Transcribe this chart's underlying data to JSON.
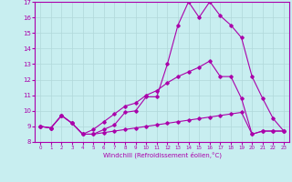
{
  "xlabel": "Windchill (Refroidissement éolien,°C)",
  "background_color": "#c8eef0",
  "grid_color": "#b0d8da",
  "line_color": "#aa00aa",
  "xlim": [
    -0.5,
    23.5
  ],
  "ylim": [
    8,
    17
  ],
  "xticks": [
    0,
    1,
    2,
    3,
    4,
    5,
    6,
    7,
    8,
    9,
    10,
    11,
    12,
    13,
    14,
    15,
    16,
    17,
    18,
    19,
    20,
    21,
    22,
    23
  ],
  "yticks": [
    8,
    9,
    10,
    11,
    12,
    13,
    14,
    15,
    16,
    17
  ],
  "series": [
    [
      9.0,
      8.9,
      9.7,
      9.2,
      8.5,
      8.5,
      8.8,
      9.1,
      9.9,
      10.0,
      10.9,
      10.9,
      13.0,
      15.5,
      17.0,
      16.0,
      17.0,
      16.1,
      15.5,
      14.7,
      12.2,
      10.8,
      9.5,
      8.7
    ],
    [
      9.0,
      8.9,
      9.7,
      9.2,
      8.5,
      8.8,
      9.3,
      9.8,
      10.3,
      10.5,
      11.0,
      11.3,
      11.8,
      12.2,
      12.5,
      12.8,
      13.2,
      12.2,
      12.2,
      10.8,
      8.5,
      8.7,
      8.7,
      8.7
    ],
    [
      9.0,
      8.9,
      9.7,
      9.2,
      8.5,
      8.5,
      8.6,
      8.7,
      8.8,
      8.9,
      9.0,
      9.1,
      9.2,
      9.3,
      9.4,
      9.5,
      9.6,
      9.7,
      9.8,
      9.9,
      8.5,
      8.7,
      8.7,
      8.7
    ]
  ]
}
